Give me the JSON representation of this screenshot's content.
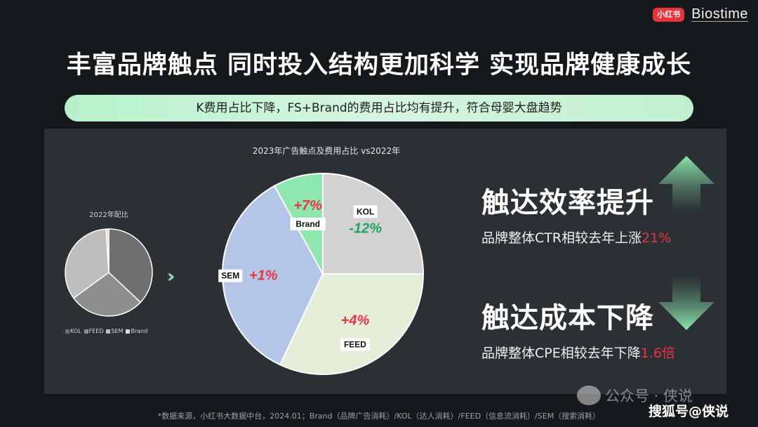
{
  "logos": {
    "xhs": "小红书",
    "brand": "Biostime"
  },
  "title": "丰富品牌触点 同时投入结构更加科学 实现品牌健康成长",
  "banner": "K费用占比下降，FS+Brand的费用占比均有提升，符合母婴大盘趋势",
  "chart_data": [
    {
      "type": "pie",
      "title": "2022年配比",
      "categories": [
        "KOL",
        "FEED",
        "SEM",
        "Brand"
      ],
      "values": [
        37,
        28,
        34,
        1
      ],
      "colors": [
        "#6f6f6f",
        "#8e8e8e",
        "#bdbdbd",
        "#dcdcdc"
      ],
      "legend": [
        "KOL",
        "FEED",
        "SEM",
        "Brand"
      ],
      "legend_position": "bottom"
    },
    {
      "type": "pie",
      "title": "2023年广告触点及费用占比 vs2022年",
      "categories": [
        "KOL",
        "FEED",
        "SEM",
        "Brand"
      ],
      "values": [
        25,
        32,
        35,
        8
      ],
      "labels": [
        "KOL",
        "FEED",
        "SEM",
        "Brand"
      ],
      "changes": [
        "-12%",
        "+4%",
        "+1%",
        "+7%"
      ],
      "colors": [
        "#d3d1d1",
        "#e3edd7",
        "#b4c6e7",
        "#8fe6ae"
      ],
      "change_colors": [
        "#1aa85c",
        "#ea3345",
        "#ea3345",
        "#ea3345"
      ]
    }
  ],
  "arrows": "»",
  "right": {
    "head1": "触达效率提升",
    "desc1_prefix": "品牌整体CTR相较去年上涨",
    "desc1_value": "21%",
    "head2": "触达成本下降",
    "desc2_prefix": "品牌整体CPE相较去年下降",
    "desc2_value": "1.6倍"
  },
  "footnote": "*数据来源，小红书大数据中台，2024.01；Brand（品牌广告消耗）/KOL（达人消耗）/FEED（信息流消耗）/SEM（搜索消耗）",
  "watermark": {
    "wechat": "公众号 · 侠说",
    "sohu": "搜狐号@侠说"
  }
}
